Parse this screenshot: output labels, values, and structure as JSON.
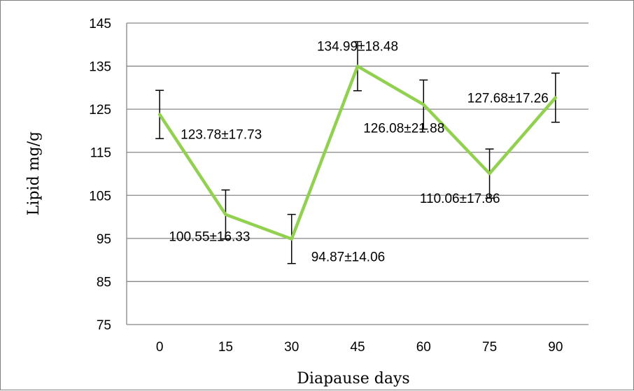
{
  "chart_data": {
    "type": "line",
    "title": "",
    "xlabel": "Diapause days",
    "ylabel": "Lipid mg/g",
    "categories": [
      "0",
      "15",
      "30",
      "45",
      "60",
      "75",
      "90"
    ],
    "ylim": [
      75,
      145
    ],
    "yticks": [
      "75",
      "85",
      "95",
      "105",
      "115",
      "125",
      "135",
      "145"
    ],
    "grid": "horizontal",
    "legend": "none",
    "series": [
      {
        "values": [
          123.78,
          100.55,
          94.87,
          134.99,
          126.08,
          110.06,
          127.68
        ],
        "errors": [
          5.6,
          5.7,
          5.7,
          5.7,
          5.7,
          5.7,
          5.7
        ],
        "color": "#92d050"
      }
    ],
    "data_labels": [
      "123.78±17.73",
      "100.55±16.33",
      "94.87±14.06",
      "134.99±18.48",
      "126.08±21.88",
      "110.06±17.86",
      "127.68±17.26"
    ]
  }
}
